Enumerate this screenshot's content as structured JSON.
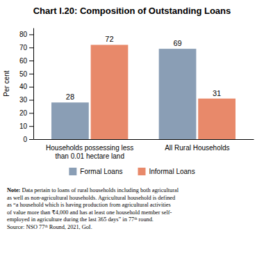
{
  "chart_data": {
    "type": "bar",
    "title": "Chart I.20: Composition of Outstanding Loans",
    "categories": [
      "Households possessing less\nthan 0.01 hectare land",
      "All Rural Households"
    ],
    "series": [
      {
        "name": "Formal Loans",
        "color": "#8a9eb5",
        "values": [
          28,
          69
        ]
      },
      {
        "name": "Informal Loans",
        "color": "#e8896a",
        "values": [
          72,
          31
        ]
      }
    ],
    "ylabel": "Per cent",
    "ylim": [
      0,
      85
    ],
    "yticks": [
      0,
      10,
      20,
      30,
      40,
      50,
      60,
      70,
      80
    ],
    "grid": false,
    "legend": "bottom",
    "data_labels": true,
    "annotations": [
      "Note:",
      " Data pertain to loans of rural households including both agricultural\nas well as non-agricultural households. Agricultural household is defined\nas “a household which is having production from agricultural activities\nof value more than ₹4,000 and has at least one household member self-\nemployed in agriculture during the last 365 days” in 77ᵗʰ round.\nSource: NSO 77ᵗʰ Round, 2021, GoI."
    ]
  }
}
